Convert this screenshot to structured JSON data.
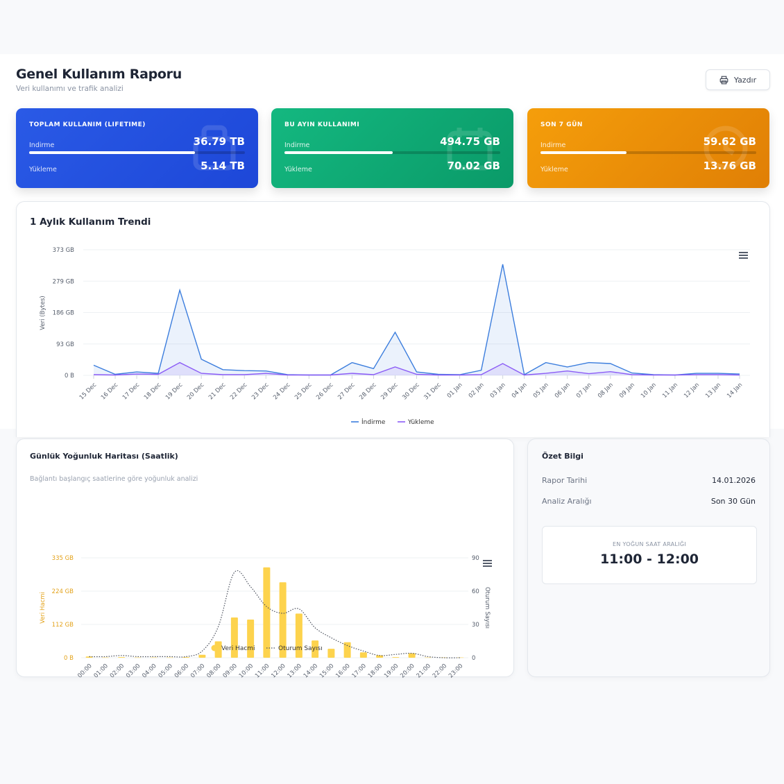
{
  "header": {
    "title": "Genel Kullanım Raporu",
    "subtitle": "Veri kullanımı ve trafik analizi",
    "print_label": "Yazdır"
  },
  "kpis": [
    {
      "title": "TOPLAM KULLANIM (LIFETIME)",
      "download_label": "İndirme",
      "download_value": "36.79 TB",
      "upload_label": "Yükleme",
      "upload_value": "5.14 TB",
      "download_share": 0.77,
      "color": "#2a5ae6",
      "icon": "database-icon"
    },
    {
      "title": "BU AYIN KULLANIMI",
      "download_label": "İndirme",
      "download_value": "494.75 GB",
      "upload_label": "Yükleme",
      "upload_value": "70.02 GB",
      "download_share": 0.5,
      "color": "#14b880",
      "icon": "calendar-icon"
    },
    {
      "title": "SON 7 GÜN",
      "download_label": "İndirme",
      "download_value": "59.62 GB",
      "upload_label": "Yükleme",
      "upload_value": "13.76 GB",
      "download_share": 0.4,
      "color": "#f59e0b",
      "icon": "clock-icon"
    }
  ],
  "trend": {
    "title": "1 Aylık Kullanım Trendi",
    "chart_data": {
      "type": "area",
      "title": "1 Aylık Kullanım Trendi",
      "ylabel": "Veri (Bytes)",
      "yticks": [
        "0 B",
        "93 GB",
        "186 GB",
        "279 GB",
        "373 GB"
      ],
      "ylim": [
        0,
        373
      ],
      "y_unit": "GB",
      "categories": [
        "15 Dec",
        "16 Dec",
        "17 Dec",
        "18 Dec",
        "19 Dec",
        "20 Dec",
        "21 Dec",
        "22 Dec",
        "23 Dec",
        "24 Dec",
        "25 Dec",
        "26 Dec",
        "27 Dec",
        "28 Dec",
        "29 Dec",
        "30 Dec",
        "31 Dec",
        "01 Jan",
        "02 Jan",
        "03 Jan",
        "04 Jan",
        "05 Jan",
        "06 Jan",
        "07 Jan",
        "08 Jan",
        "09 Jan",
        "10 Jan",
        "11 Jan",
        "12 Jan",
        "13 Jan",
        "14 Jan"
      ],
      "series": [
        {
          "name": "İndirme",
          "color": "#3b7ddd",
          "values": [
            30,
            3,
            10,
            6,
            253,
            48,
            17,
            14,
            13,
            2,
            1,
            1,
            38,
            20,
            128,
            10,
            3,
            2,
            15,
            330,
            2,
            38,
            25,
            38,
            35,
            7,
            2,
            1,
            6,
            6,
            4
          ]
        },
        {
          "name": "Yükleme",
          "color": "#8b5cf6",
          "values": [
            2,
            1,
            4,
            3,
            38,
            6,
            2,
            2,
            6,
            1,
            1,
            1,
            6,
            2,
            25,
            3,
            1,
            1,
            2,
            35,
            1,
            6,
            13,
            5,
            11,
            2,
            1,
            1,
            2,
            2,
            1
          ]
        }
      ],
      "legend": "bottom-center",
      "grid": true
    }
  },
  "heatmap": {
    "title": "Günlük Yoğunluk Haritası (Saatlik)",
    "subtitle": "Bağlantı başlangıç saatlerine göre yoğunluk analizi",
    "chart_data": {
      "type": "bar",
      "categories": [
        "00:00",
        "01:00",
        "02:00",
        "03:00",
        "04:00",
        "05:00",
        "06:00",
        "07:00",
        "08:00",
        "09:00",
        "10:00",
        "11:00",
        "12:00",
        "13:00",
        "14:00",
        "15:00",
        "16:00",
        "17:00",
        "18:00",
        "19:00",
        "20:00",
        "21:00",
        "22:00",
        "23:00"
      ],
      "ylabel": "Veri Hacmi",
      "y2label": "Oturum Sayısı",
      "yticks": [
        "0 B",
        "112 GB",
        "224 GB",
        "335 GB"
      ],
      "ylim": [
        0,
        335
      ],
      "y2ticks": [
        "0",
        "30",
        "60",
        "90"
      ],
      "y2lim": [
        0,
        90
      ],
      "series": [
        {
          "name": "Veri Hacmi",
          "type": "bar",
          "color": "#fdd34d",
          "values": [
            4,
            1,
            2,
            1,
            1,
            1,
            2,
            10,
            55,
            135,
            128,
            303,
            253,
            148,
            58,
            30,
            52,
            18,
            8,
            2,
            15,
            1,
            1,
            1
          ]
        },
        {
          "name": "Oturum Sayısı",
          "type": "line",
          "style": "dotted",
          "color": "#4a4f5c",
          "values": [
            1,
            1,
            2,
            1,
            1,
            1,
            1,
            6,
            28,
            77,
            64,
            46,
            40,
            44,
            27,
            18,
            11,
            6,
            2,
            3,
            4,
            1,
            0,
            0
          ]
        }
      ],
      "legend": "bottom-center",
      "grid": true
    }
  },
  "summary": {
    "title": "Özet Bilgi",
    "rows": [
      {
        "label": "Rapor Tarihi",
        "value": "14.01.2026"
      },
      {
        "label": "Analiz Aralığı",
        "value": "Son 30 Gün"
      }
    ],
    "peak_label": "EN YOĞUN SAAT ARALIĞI",
    "peak_value": "11:00 - 12:00"
  }
}
